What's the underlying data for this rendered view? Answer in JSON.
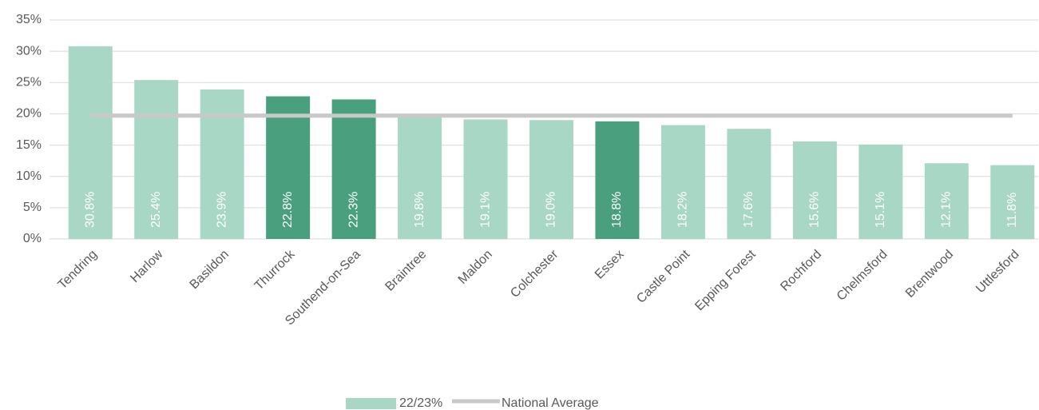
{
  "chart_data": {
    "type": "bar",
    "categories": [
      "Tendring",
      "Harlow",
      "Basildon",
      "Thurrock",
      "Southend-on-Sea",
      "Braintree",
      "Maldon",
      "Colchester",
      "Essex",
      "Castle Point",
      "Epping Forest",
      "Rochford",
      "Chelmsford",
      "Brentwood",
      "Uttlesford"
    ],
    "series": [
      {
        "name": "22/23%",
        "type": "bar",
        "color": "#a8d8c5",
        "colors": [
          "#a8d8c5",
          "#a8d8c5",
          "#a8d8c5",
          "#4a9f7e",
          "#4a9f7e",
          "#a8d8c5",
          "#a8d8c5",
          "#a8d8c5",
          "#4a9f7e",
          "#a8d8c5",
          "#a8d8c5",
          "#a8d8c5",
          "#a8d8c5",
          "#a8d8c5",
          "#a8d8c5"
        ],
        "values": [
          30.8,
          25.4,
          23.9,
          22.8,
          22.3,
          19.8,
          19.1,
          19.0,
          18.8,
          18.2,
          17.6,
          15.6,
          15.1,
          12.1,
          11.8
        ],
        "value_labels": [
          "30.8%",
          "25.4%",
          "23.9%",
          "22.8%",
          "22.3%",
          "19.8%",
          "19.1%",
          "19.0%",
          "18.8%",
          "18.2%",
          "17.6%",
          "15.6%",
          "15.1%",
          "12.1%",
          "11.8%"
        ]
      },
      {
        "name": "National Average",
        "type": "line",
        "color": "#c9c9c9",
        "values": [
          19.7,
          19.7,
          19.7,
          19.7,
          19.7,
          19.7,
          19.7,
          19.7,
          19.7,
          19.7,
          19.7,
          19.7,
          19.7,
          19.7,
          19.7
        ]
      }
    ],
    "ylim": [
      0,
      35
    ],
    "yticks": [
      {
        "value": 0,
        "label": "0%"
      },
      {
        "value": 5,
        "label": "5%"
      },
      {
        "value": 10,
        "label": "10%"
      },
      {
        "value": 15,
        "label": "15%"
      },
      {
        "value": 20,
        "label": "20%"
      },
      {
        "value": 25,
        "label": "25%"
      },
      {
        "value": 30,
        "label": "30%"
      },
      {
        "value": 35,
        "label": "35%"
      }
    ],
    "grid": true,
    "legend": "bottom"
  }
}
